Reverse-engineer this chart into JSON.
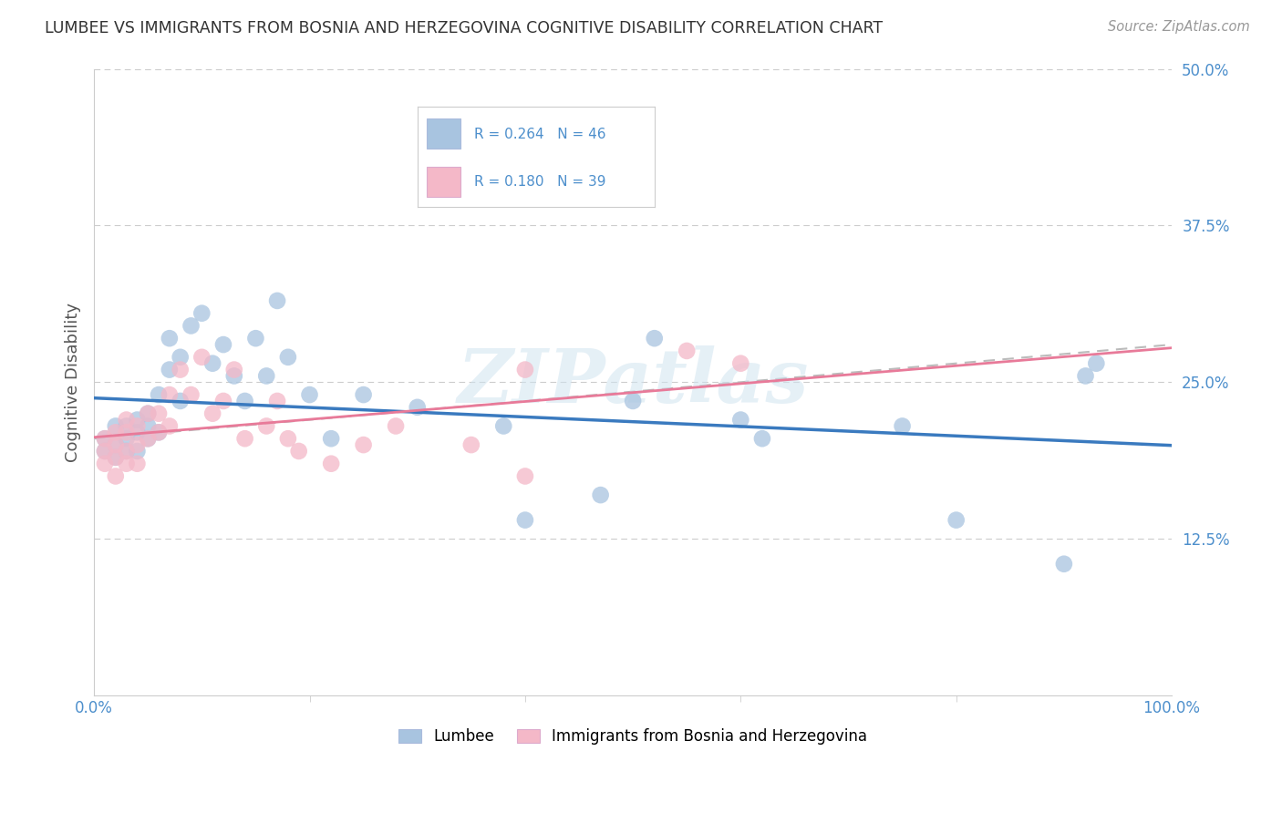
{
  "title": "LUMBEE VS IMMIGRANTS FROM BOSNIA AND HERZEGOVINA COGNITIVE DISABILITY CORRELATION CHART",
  "source": "Source: ZipAtlas.com",
  "ylabel": "Cognitive Disability",
  "xlim": [
    0,
    1.0
  ],
  "ylim": [
    0,
    0.5
  ],
  "ytick_labels": [
    "12.5%",
    "25.0%",
    "37.5%",
    "50.0%"
  ],
  "ytick_values": [
    0.125,
    0.25,
    0.375,
    0.5
  ],
  "legend_label1": "Lumbee",
  "legend_label2": "Immigrants from Bosnia and Herzegovina",
  "R1": "0.264",
  "N1": "46",
  "R2": "0.180",
  "N2": "39",
  "color1": "#a8c4e0",
  "color2": "#f4b8c8",
  "line1_color": "#3a7abf",
  "line2_color": "#e87a99",
  "dash_color": "#cccccc",
  "background_color": "#ffffff",
  "watermark_text": "ZIPatlas",
  "lumbee_x": [
    0.01,
    0.01,
    0.02,
    0.02,
    0.02,
    0.03,
    0.03,
    0.03,
    0.04,
    0.04,
    0.04,
    0.05,
    0.05,
    0.05,
    0.06,
    0.06,
    0.07,
    0.07,
    0.08,
    0.08,
    0.09,
    0.1,
    0.11,
    0.12,
    0.13,
    0.14,
    0.15,
    0.16,
    0.17,
    0.18,
    0.2,
    0.22,
    0.25,
    0.3,
    0.38,
    0.4,
    0.47,
    0.5,
    0.52,
    0.6,
    0.62,
    0.75,
    0.8,
    0.9,
    0.92,
    0.93
  ],
  "lumbee_y": [
    0.205,
    0.195,
    0.215,
    0.2,
    0.19,
    0.215,
    0.205,
    0.195,
    0.22,
    0.21,
    0.195,
    0.225,
    0.215,
    0.205,
    0.24,
    0.21,
    0.285,
    0.26,
    0.27,
    0.235,
    0.295,
    0.305,
    0.265,
    0.28,
    0.255,
    0.235,
    0.285,
    0.255,
    0.315,
    0.27,
    0.24,
    0.205,
    0.24,
    0.23,
    0.215,
    0.14,
    0.16,
    0.235,
    0.285,
    0.22,
    0.205,
    0.215,
    0.14,
    0.105,
    0.255,
    0.265
  ],
  "bosnia_x": [
    0.01,
    0.01,
    0.01,
    0.02,
    0.02,
    0.02,
    0.02,
    0.03,
    0.03,
    0.03,
    0.03,
    0.04,
    0.04,
    0.04,
    0.05,
    0.05,
    0.06,
    0.06,
    0.07,
    0.07,
    0.08,
    0.09,
    0.1,
    0.11,
    0.12,
    0.13,
    0.14,
    0.16,
    0.17,
    0.18,
    0.19,
    0.22,
    0.25,
    0.28,
    0.35,
    0.4,
    0.4,
    0.55,
    0.6
  ],
  "bosnia_y": [
    0.205,
    0.195,
    0.185,
    0.21,
    0.2,
    0.19,
    0.175,
    0.22,
    0.21,
    0.195,
    0.185,
    0.215,
    0.2,
    0.185,
    0.225,
    0.205,
    0.225,
    0.21,
    0.24,
    0.215,
    0.26,
    0.24,
    0.27,
    0.225,
    0.235,
    0.26,
    0.205,
    0.215,
    0.235,
    0.205,
    0.195,
    0.185,
    0.2,
    0.215,
    0.2,
    0.26,
    0.175,
    0.275,
    0.265
  ]
}
